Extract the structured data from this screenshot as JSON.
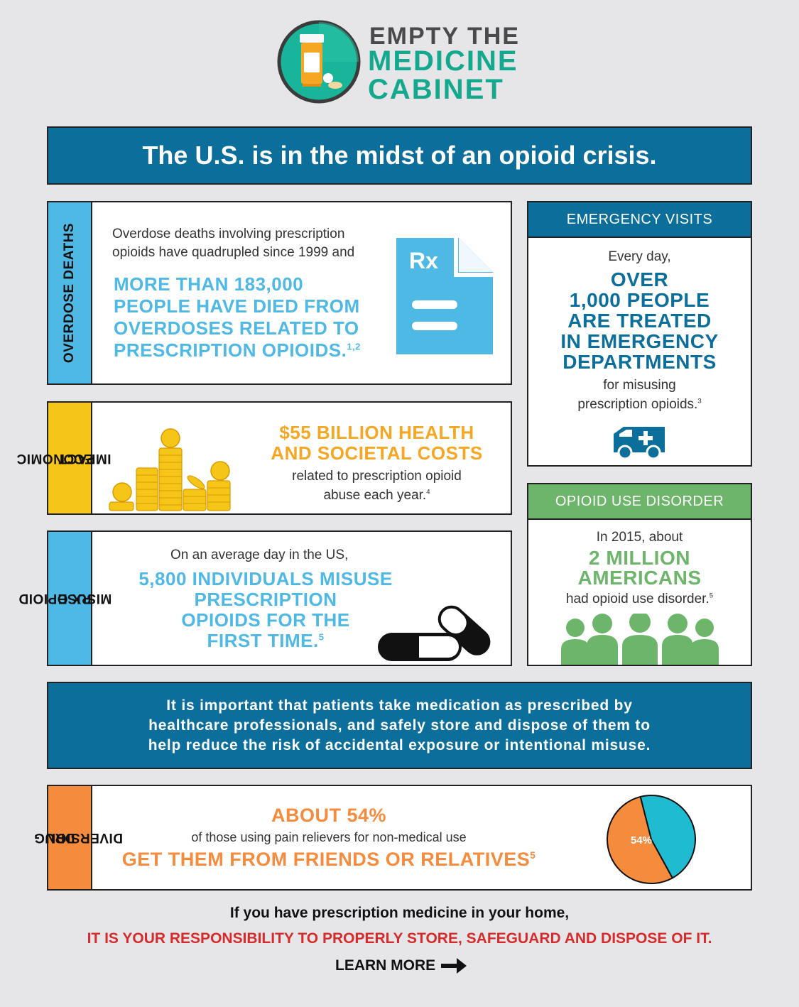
{
  "logo": {
    "line1": "EMPTY THE",
    "line2": "MEDICINE",
    "line3": "CABINET"
  },
  "headline": "The U.S. is in the midst of an opioid crisis.",
  "overdose": {
    "side_label": "OVERDOSE DEATHS",
    "intro_line1": "Overdose deaths involving prescription",
    "intro_line2": "opioids have quadrupled since 1999 and",
    "stat_line1": "MORE THAN 183,000",
    "stat_line2": "PEOPLE HAVE DIED FROM",
    "stat_line3": "OVERDOSES RELATED TO",
    "stat_line4": "PRESCRIPTION OPIOIDS.",
    "ref": "1,2",
    "rx_glyph": "Rx"
  },
  "emergency": {
    "header": "EMERGENCY VISITS",
    "intro": "Every day,",
    "stat_line1": "OVER",
    "stat_line2": "1,000 PEOPLE",
    "stat_line3": "ARE TREATED",
    "stat_line4": "IN EMERGENCY",
    "stat_line5": "DEPARTMENTS",
    "outro_line1": "for misusing",
    "outro_line2": "prescription opioids.",
    "ref": "3"
  },
  "economic": {
    "side_label_line1": "ECONOMIC",
    "side_label_line2": "IMPACT",
    "stat_line1": "$55 BILLION HEALTH",
    "stat_line2": "AND SOCIETAL COSTS",
    "outro_line1": "related to prescription opioid",
    "outro_line2": "abuse each year.",
    "ref": "4"
  },
  "disorder": {
    "header": "OPIOID USE DISORDER",
    "intro": "In 2015, about",
    "stat_line1": "2 MILLION",
    "stat_line2": "AMERICANS",
    "outro": "had opioid use disorder.",
    "ref": "5"
  },
  "misuse": {
    "side_label_line1": "RX OPIOID",
    "side_label_line2": "MISUSE",
    "intro": "On an average day in the US,",
    "stat_line1": "5,800 INDIVIDUALS MISUSE",
    "stat_line2": "PRESCRIPTION",
    "stat_line3": "OPIOIDS FOR THE",
    "stat_line4": "FIRST TIME.",
    "ref": "5"
  },
  "message": {
    "line1": "It is important that patients take medication as prescribed by",
    "line2": "healthcare professionals, and safely store and dispose of them to",
    "line3": "help reduce the risk of accidental exposure or intentional misuse."
  },
  "diversion": {
    "side_label_line1": "DRUG",
    "side_label_line2": "DIVERSION",
    "stat_top": "ABOUT 54%",
    "middle": "of those using pain relievers for non-medical use",
    "stat_bottom": "GET THEM FROM FRIENDS OR RELATIVES",
    "ref": "5",
    "pie_label": "54%",
    "pie_percent": 54
  },
  "footer": {
    "line1": "If you have prescription medicine in your home,",
    "line2": "IT IS YOUR RESPONSIBILITY TO PROPERLY STORE, SAFEGUARD AND DISPOSE OF IT.",
    "learn_more": "LEARN MORE"
  },
  "colors": {
    "navy": "#0c6e9a",
    "light_blue": "#4fb9e6",
    "gold": "#f5b42a",
    "green": "#6cb56a",
    "orange": "#f58b3d",
    "teal": "#1fbcd1",
    "red": "#d52b2b"
  }
}
